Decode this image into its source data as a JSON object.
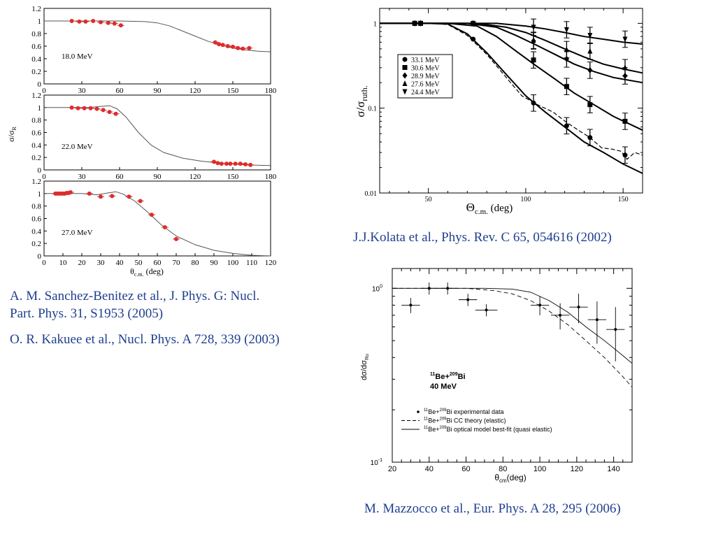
{
  "citations": {
    "sanchez_1": "A. M. Sanchez-Benitez et al., J. Phys. G: Nucl.",
    "sanchez_2": "Part. Phys. 31, S1953 (2005)",
    "kakuee": "O. R. Kakuee et al., Nucl. Phys. A 728, 339 (2003)",
    "kolata": "J.J.Kolata et al., Phys. Rev. C 65, 054616 (2002)",
    "mazzocco": "M. Mazzocco et al., Eur. Phys. A 28, 295 (2006)"
  },
  "chart_data": [
    {
      "type": "scatter",
      "panel": "top-left",
      "energy_label": "18.0 MeV",
      "ylabel_main": "σ/σ",
      "ylabel_sub": "R",
      "xlim": [
        0,
        180
      ],
      "ylim": [
        0,
        1.2
      ],
      "xticks": [
        0,
        30,
        60,
        90,
        120,
        150,
        180
      ],
      "yticks": [
        0,
        0.2,
        0.4,
        0.6,
        0.8,
        1,
        1.2
      ],
      "points": [
        [
          22,
          1.0
        ],
        [
          28,
          0.99
        ],
        [
          33,
          0.99
        ],
        [
          39,
          1.0
        ],
        [
          45,
          0.98
        ],
        [
          51,
          0.97
        ],
        [
          56,
          0.96
        ],
        [
          61,
          0.93
        ],
        [
          136,
          0.66
        ],
        [
          139,
          0.63
        ],
        [
          142,
          0.62
        ],
        [
          146,
          0.6
        ],
        [
          150,
          0.59
        ],
        [
          154,
          0.57
        ],
        [
          158,
          0.56
        ],
        [
          163,
          0.57
        ]
      ],
      "theory": [
        [
          0,
          1.0
        ],
        [
          60,
          1.0
        ],
        [
          80,
          0.99
        ],
        [
          90,
          0.97
        ],
        [
          100,
          0.92
        ],
        [
          110,
          0.84
        ],
        [
          120,
          0.76
        ],
        [
          130,
          0.68
        ],
        [
          140,
          0.62
        ],
        [
          150,
          0.57
        ],
        [
          160,
          0.54
        ],
        [
          170,
          0.52
        ],
        [
          180,
          0.51
        ]
      ]
    },
    {
      "type": "scatter",
      "panel": "middle-left",
      "energy_label": "22.0 MeV",
      "xlim": [
        0,
        180
      ],
      "ylim": [
        0,
        1.2
      ],
      "xticks": [
        0,
        30,
        60,
        90,
        120,
        150,
        180
      ],
      "yticks": [
        0,
        0.2,
        0.4,
        0.6,
        0.8,
        1,
        1.2
      ],
      "points": [
        [
          22,
          1.0
        ],
        [
          27,
          0.99
        ],
        [
          32,
          0.99
        ],
        [
          37,
          0.99
        ],
        [
          42,
          0.98
        ],
        [
          47,
          0.96
        ],
        [
          52,
          0.93
        ],
        [
          57,
          0.9
        ],
        [
          135,
          0.13
        ],
        [
          138,
          0.11
        ],
        [
          141,
          0.1
        ],
        [
          145,
          0.1
        ],
        [
          148,
          0.1
        ],
        [
          152,
          0.1
        ],
        [
          156,
          0.1
        ],
        [
          160,
          0.09
        ],
        [
          164,
          0.08
        ]
      ],
      "theory": [
        [
          0,
          1.0
        ],
        [
          35,
          1.0
        ],
        [
          45,
          1.02
        ],
        [
          52,
          1.03
        ],
        [
          58,
          0.98
        ],
        [
          65,
          0.85
        ],
        [
          75,
          0.6
        ],
        [
          85,
          0.4
        ],
        [
          95,
          0.28
        ],
        [
          110,
          0.19
        ],
        [
          125,
          0.14
        ],
        [
          140,
          0.11
        ],
        [
          160,
          0.08
        ],
        [
          180,
          0.07
        ]
      ]
    },
    {
      "type": "scatter",
      "panel": "bottom-left",
      "energy_label": "27.0 MeV",
      "xlabel_main": "θ",
      "xlabel_sub": "c.m.",
      "xlabel_unit": "(deg)",
      "xlim": [
        0,
        120
      ],
      "ylim": [
        0,
        1.2
      ],
      "xticks": [
        0,
        10,
        20,
        30,
        40,
        50,
        60,
        70,
        80,
        90,
        100,
        110,
        120
      ],
      "yticks": [
        0,
        0.2,
        0.4,
        0.6,
        0.8,
        1,
        1.2
      ],
      "points": [
        [
          6,
          1.0
        ],
        [
          7,
          1.0
        ],
        [
          8,
          1.0
        ],
        [
          9,
          1.0
        ],
        [
          10,
          1.0
        ],
        [
          11,
          1.0
        ],
        [
          12,
          1.01
        ],
        [
          13,
          1.01
        ],
        [
          14,
          1.02
        ],
        [
          24,
          1.0
        ],
        [
          30,
          0.95
        ],
        [
          36,
          0.96
        ],
        [
          45,
          0.95
        ],
        [
          51,
          0.88
        ],
        [
          57,
          0.66
        ],
        [
          64,
          0.46
        ],
        [
          70,
          0.27
        ]
      ],
      "theory": [
        [
          0,
          1.0
        ],
        [
          20,
          1.0
        ],
        [
          28,
          0.98
        ],
        [
          34,
          1.01
        ],
        [
          38,
          1.03
        ],
        [
          42,
          0.99
        ],
        [
          48,
          0.88
        ],
        [
          55,
          0.7
        ],
        [
          62,
          0.5
        ],
        [
          70,
          0.32
        ],
        [
          80,
          0.18
        ],
        [
          90,
          0.09
        ],
        [
          100,
          0.04
        ],
        [
          110,
          0.01
        ],
        [
          120,
          0.0
        ]
      ]
    },
    {
      "type": "line",
      "panel": "top-right",
      "ylabel_main": "σ/σ",
      "ylabel_sub": "ruth.",
      "xlabel_main": "Θ",
      "xlabel_sub": "c.m.",
      "xlabel_unit": "(deg)",
      "xlim": [
        25,
        160
      ],
      "ylim": [
        0.01,
        1.5
      ],
      "yscale": "log",
      "xticks": [
        50,
        100,
        150
      ],
      "yticks": [
        0.01,
        0.1,
        1
      ],
      "ytick_labels": [
        "0.01",
        "0.1",
        "1"
      ],
      "legend_position": "upper-left",
      "series": [
        {
          "name": "33.1 MeV",
          "marker": "circle",
          "points": [
            [
              43,
              1.0
            ],
            [
              46,
              1.0
            ],
            [
              73,
              0.65
            ],
            [
              104,
              0.115
            ],
            [
              121,
              0.062
            ],
            [
              133,
              0.045
            ],
            [
              151,
              0.028
            ]
          ],
          "theory": [
            [
              20,
              1.0
            ],
            [
              50,
              1.0
            ],
            [
              60,
              0.98
            ],
            [
              70,
              0.75
            ],
            [
              80,
              0.45
            ],
            [
              90,
              0.25
            ],
            [
              100,
              0.14
            ],
            [
              110,
              0.09
            ],
            [
              120,
              0.06
            ],
            [
              130,
              0.04
            ],
            [
              140,
              0.03
            ],
            [
              150,
              0.022
            ],
            [
              160,
              0.017
            ]
          ]
        },
        {
          "name": "30.6 MeV",
          "marker": "square",
          "points": [
            [
              43,
              1.0
            ],
            [
              46,
              1.0
            ],
            [
              73,
              0.99
            ],
            [
              104,
              0.37
            ],
            [
              121,
              0.18
            ],
            [
              133,
              0.11
            ],
            [
              151,
              0.07
            ]
          ],
          "theory": [
            [
              20,
              1.0
            ],
            [
              60,
              1.0
            ],
            [
              75,
              0.93
            ],
            [
              85,
              0.7
            ],
            [
              95,
              0.47
            ],
            [
              105,
              0.32
            ],
            [
              115,
              0.22
            ],
            [
              125,
              0.15
            ],
            [
              135,
              0.11
            ],
            [
              145,
              0.08
            ],
            [
              160,
              0.055
            ]
          ]
        },
        {
          "name": "28.9 MeV",
          "marker": "diamond",
          "points": [
            [
              43,
              1.0
            ],
            [
              46,
              1.0
            ],
            [
              73,
              1.0
            ],
            [
              104,
              0.62
            ],
            [
              121,
              0.38
            ],
            [
              133,
              0.28
            ],
            [
              151,
              0.24
            ]
          ],
          "theory": [
            [
              20,
              1.0
            ],
            [
              70,
              1.0
            ],
            [
              85,
              0.9
            ],
            [
              95,
              0.72
            ],
            [
              105,
              0.56
            ],
            [
              115,
              0.43
            ],
            [
              125,
              0.33
            ],
            [
              135,
              0.27
            ],
            [
              145,
              0.23
            ],
            [
              160,
              0.2
            ]
          ]
        },
        {
          "name": "27.6 MeV",
          "marker": "triangle-up",
          "points": [
            [
              43,
              1.0
            ],
            [
              46,
              1.0
            ],
            [
              73,
              1.0
            ],
            [
              104,
              0.63
            ],
            [
              121,
              0.49
            ],
            [
              133,
              0.47
            ],
            [
              151,
              0.3
            ]
          ],
          "theory": [
            [
              20,
              1.0
            ],
            [
              75,
              1.0
            ],
            [
              90,
              0.9
            ],
            [
              100,
              0.78
            ],
            [
              110,
              0.63
            ],
            [
              120,
              0.5
            ],
            [
              130,
              0.4
            ],
            [
              140,
              0.33
            ],
            [
              150,
              0.29
            ],
            [
              160,
              0.26
            ]
          ]
        },
        {
          "name": "24.4 MeV",
          "marker": "triangle-down",
          "points": [
            [
              43,
              1.0
            ],
            [
              46,
              1.0
            ],
            [
              73,
              1.0
            ],
            [
              104,
              0.9
            ],
            [
              121,
              0.84
            ],
            [
              133,
              0.72
            ],
            [
              151,
              0.65
            ]
          ],
          "theory": [
            [
              20,
              1.0
            ],
            [
              85,
              1.0
            ],
            [
              100,
              0.93
            ],
            [
              110,
              0.86
            ],
            [
              120,
              0.78
            ],
            [
              130,
              0.7
            ],
            [
              140,
              0.65
            ],
            [
              150,
              0.6
            ],
            [
              160,
              0.57
            ]
          ]
        }
      ],
      "dashed_curve": [
        [
          20,
          1.0
        ],
        [
          50,
          1.0
        ],
        [
          60,
          0.97
        ],
        [
          70,
          0.72
        ],
        [
          80,
          0.43
        ],
        [
          90,
          0.23
        ],
        [
          98,
          0.14
        ],
        [
          106,
          0.11
        ],
        [
          114,
          0.09
        ],
        [
          121,
          0.068
        ],
        [
          127,
          0.055
        ],
        [
          133,
          0.045
        ],
        [
          139,
          0.034
        ],
        [
          144,
          0.033
        ],
        [
          149,
          0.031
        ],
        [
          152,
          0.025
        ],
        [
          156,
          0.03
        ],
        [
          160,
          0.028
        ]
      ]
    },
    {
      "type": "line",
      "panel": "bottom-right",
      "annotation": {
        "mass": "11",
        "element": "Be+",
        "mass2": "209",
        "element2": "Bi",
        "energy": "40 MeV"
      },
      "ylabel": "dσ/dσ",
      "ylabel_sub": "Ru",
      "xlabel_main": "θ",
      "xlabel_sub": "cm",
      "xlabel_unit": "(deg)",
      "xlim": [
        20,
        150
      ],
      "ylim": [
        0.1,
        1.3
      ],
      "yscale": "log",
      "xticks": [
        20,
        40,
        60,
        80,
        100,
        120,
        140
      ],
      "ytick_labels": [
        {
          "base": "10",
          "exp": "0"
        },
        {
          "base": "10",
          "exp": "-1"
        }
      ],
      "legend_position": "lower-left",
      "legend": [
        {
          "marker": "point",
          "pre": "11",
          "a": "Be+",
          "mid": "209",
          "b": "Bi experimental data"
        },
        {
          "marker": "dashed",
          "pre": "11",
          "a": "Be+",
          "mid": "209",
          "b": "Bi CC theory (elastic)"
        },
        {
          "marker": "solid",
          "pre": "11",
          "a": "Be+",
          "mid": "209",
          "b": "Bi optical model best-fit (quasi elastic)"
        }
      ],
      "points": [
        [
          30,
          0.8,
          0.08,
          5,
          5
        ],
        [
          40,
          1.0,
          0.08,
          4,
          4
        ],
        [
          50,
          1.0,
          0.08,
          5,
          5
        ],
        [
          61,
          0.86,
          0.07,
          5,
          5
        ],
        [
          71,
          0.75,
          0.06,
          6,
          6
        ],
        [
          100,
          0.8,
          0.1,
          5,
          5
        ],
        [
          111,
          0.7,
          0.12,
          5,
          5
        ],
        [
          121,
          0.78,
          0.15,
          5,
          5
        ],
        [
          131,
          0.66,
          0.18,
          5,
          5
        ],
        [
          141,
          0.58,
          0.2,
          5,
          5
        ]
      ],
      "solid_curve": [
        [
          20,
          1.0
        ],
        [
          70,
          1.0
        ],
        [
          85,
          0.99
        ],
        [
          95,
          0.95
        ],
        [
          105,
          0.85
        ],
        [
          115,
          0.73
        ],
        [
          125,
          0.6
        ],
        [
          135,
          0.5
        ],
        [
          145,
          0.41
        ],
        [
          150,
          0.37
        ]
      ],
      "dashed_curve": [
        [
          20,
          1.0
        ],
        [
          60,
          1.0
        ],
        [
          75,
          0.97
        ],
        [
          85,
          0.93
        ],
        [
          95,
          0.85
        ],
        [
          105,
          0.74
        ],
        [
          115,
          0.62
        ],
        [
          125,
          0.5
        ],
        [
          135,
          0.4
        ],
        [
          145,
          0.31
        ],
        [
          150,
          0.27
        ]
      ]
    }
  ]
}
